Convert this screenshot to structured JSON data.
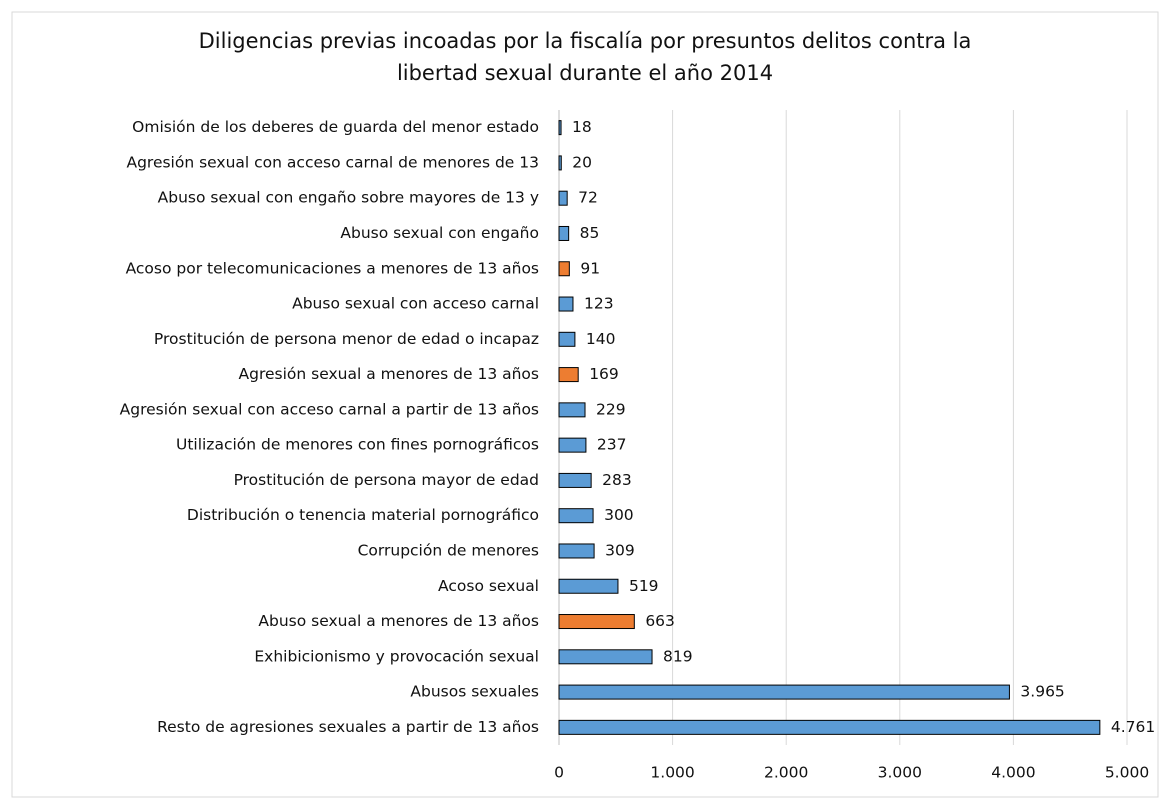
{
  "chart_data": {
    "type": "bar",
    "orientation": "horizontal",
    "title": [
      "Diligencias previas incoadas por la fiscalía por presuntos delitos contra la",
      "libertad sexual durante el año 2014"
    ],
    "categories": [
      "Omisión de los deberes de guarda del menor estado",
      "Agresión sexual con acceso carnal de menores de 13",
      "Abuso sexual con engaño sobre mayores de 13 y",
      "Abuso sexual con engaño",
      "Acoso por telecomunicaciones a menores de 13 años",
      "Abuso sexual con acceso carnal",
      "Prostitución de persona menor de edad o incapaz",
      "Agresión sexual a menores de 13 años",
      "Agresión sexual con acceso carnal a partir de 13 años",
      "Utilización de menores con fines pornográficos",
      "Prostitución de persona mayor de edad",
      "Distribución o tenencia material pornográfico",
      "Corrupción de menores",
      "Acoso sexual",
      "Abuso sexual a menores de 13 años",
      "Exhibicionismo y provocación sexual",
      "Abusos sexuales",
      "Resto de agresiones sexuales a partir de 13 años"
    ],
    "values": [
      18,
      20,
      72,
      85,
      91,
      123,
      140,
      169,
      229,
      237,
      283,
      300,
      309,
      519,
      663,
      819,
      3965,
      4761
    ],
    "value_labels": [
      "18",
      "20",
      "72",
      "85",
      "91",
      "123",
      "140",
      "169",
      "229",
      "237",
      "283",
      "300",
      "309",
      "519",
      "663",
      "819",
      "3.965",
      "4.761"
    ],
    "colors": [
      "#5b9bd5",
      "#5b9bd5",
      "#5b9bd5",
      "#5b9bd5",
      "#ed7d31",
      "#5b9bd5",
      "#5b9bd5",
      "#ed7d31",
      "#5b9bd5",
      "#5b9bd5",
      "#5b9bd5",
      "#5b9bd5",
      "#5b9bd5",
      "#5b9bd5",
      "#ed7d31",
      "#5b9bd5",
      "#5b9bd5",
      "#5b9bd5"
    ],
    "xlim": [
      0,
      5000
    ],
    "xticks": [
      0,
      {
        "value": 1000,
        "label": "1.000"
      },
      {
        "value": 2000,
        "label": "2.000"
      },
      {
        "value": 3000,
        "label": "3.000"
      },
      {
        "value": 4000,
        "label": "4.000"
      },
      {
        "value": 5000,
        "label": "5.000"
      }
    ],
    "grid": true
  }
}
